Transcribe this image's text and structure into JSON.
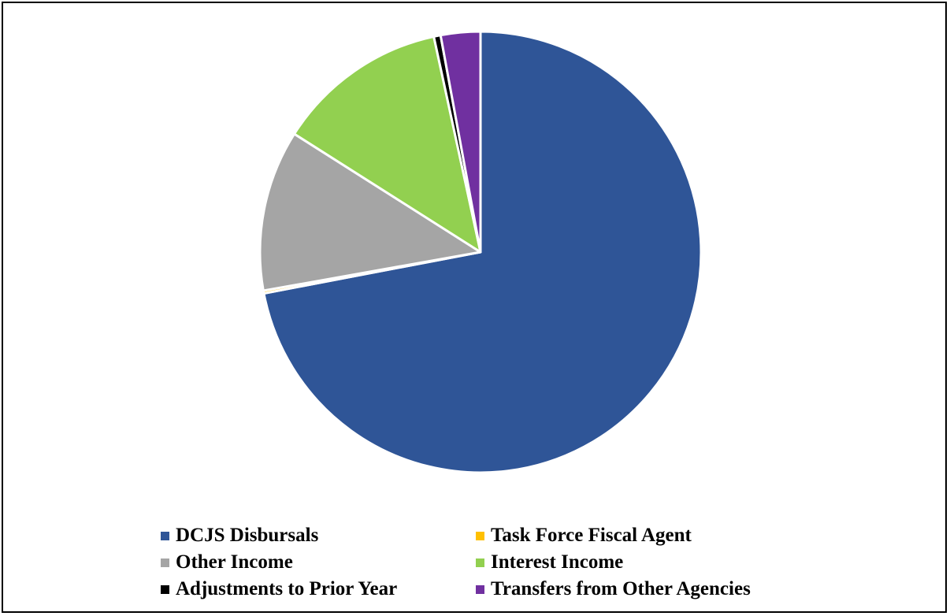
{
  "chart_data": {
    "type": "pie",
    "title": "",
    "start_angle_deg": 0,
    "direction": "clockwise",
    "legend_position": "bottom",
    "slices": [
      {
        "name": "DCJS Disbursals",
        "value": 72.0,
        "color": "#2F5597"
      },
      {
        "name": "Task Force Fiscal Agent",
        "value": 0.2,
        "color": "#FFC000"
      },
      {
        "name": "Other Income",
        "value": 11.8,
        "color": "#A5A5A5"
      },
      {
        "name": "Interest Income",
        "value": 12.6,
        "color": "#92D050"
      },
      {
        "name": "Adjustments to Prior Year",
        "value": 0.5,
        "color": "#000000"
      },
      {
        "name": "Transfers from Other Agencies",
        "value": 2.9,
        "color": "#7030A0"
      }
    ]
  },
  "legend": {
    "items": [
      {
        "label": "DCJS Disbursals",
        "color": "#2F5597"
      },
      {
        "label": "Task Force Fiscal Agent",
        "color": "#FFC000"
      },
      {
        "label": "Other Income",
        "color": "#A5A5A5"
      },
      {
        "label": "Interest Income",
        "color": "#92D050"
      },
      {
        "label": "Adjustments to Prior Year",
        "color": "#000000"
      },
      {
        "label": "Transfers from Other Agencies",
        "color": "#7030A0"
      }
    ]
  }
}
